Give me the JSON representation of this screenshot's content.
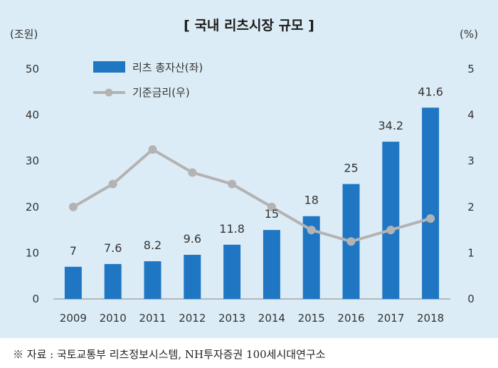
{
  "chart_data": {
    "type": "bar",
    "title": "[ 국내 리츠시장 규모 ]",
    "left_unit": "(조원)",
    "right_unit": "(%)",
    "categories": [
      "2009",
      "2010",
      "2011",
      "2012",
      "2013",
      "2014",
      "2015",
      "2016",
      "2017",
      "2018"
    ],
    "series": [
      {
        "name": "리츠 총자산(좌)",
        "type": "bar",
        "axis": "left",
        "color": "#1f77c4",
        "values": [
          7,
          7.6,
          8.2,
          9.6,
          11.8,
          15,
          18,
          25,
          34.2,
          41.6
        ],
        "data_labels": [
          "7",
          "7.6",
          "8.2",
          "9.6",
          "11.8",
          "15",
          "18",
          "25",
          "34.2",
          "41.6"
        ]
      },
      {
        "name": "기준금리(우)",
        "type": "line",
        "axis": "right",
        "color": "#b3b3b3",
        "values": [
          2.0,
          2.5,
          3.25,
          2.75,
          2.5,
          2.0,
          1.5,
          1.25,
          1.5,
          1.75
        ]
      }
    ],
    "y_left": {
      "min": 0,
      "max": 50,
      "ticks": [
        "0",
        "10",
        "20",
        "30",
        "40",
        "50"
      ]
    },
    "y_right": {
      "min": 0,
      "max": 5,
      "ticks": [
        "0",
        "1",
        "2",
        "3",
        "4",
        "5"
      ]
    },
    "legend_position": "top-left",
    "grid": false
  },
  "footer": {
    "source": "※ 자료 : 국토교통부 리츠정보시스템, NH투자증권 100세시대연구소"
  }
}
